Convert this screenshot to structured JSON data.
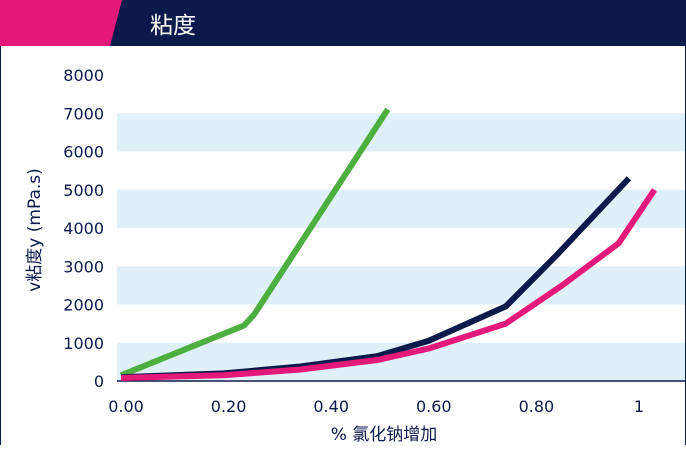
{
  "header": {
    "title": "粘度",
    "bar_color": "#0c1a4b",
    "accent_color": "#e5197a",
    "title_color": "#ffffff"
  },
  "chart_data": {
    "type": "line",
    "title": "粘度",
    "xlabel": "% 氯化钠增加",
    "ylabel": "v粘度y (mPa.s)",
    "xlim": [
      0,
      1.05
    ],
    "ylim": [
      0,
      8000
    ],
    "x_ticks": [
      0,
      0.2,
      0.4,
      0.6,
      0.8,
      1
    ],
    "x_tick_labels": [
      "0.00",
      "0.20",
      "0.40",
      "0.60",
      "0.80",
      "1"
    ],
    "y_ticks": [
      0,
      1000,
      2000,
      3000,
      4000,
      5000,
      6000,
      7000,
      8000
    ],
    "y_tick_labels": [
      "0",
      "1000",
      "2000",
      "3000",
      "4000",
      "5000",
      "6000",
      "7000",
      "8000"
    ],
    "grid": "horizontal alternating bands",
    "band_color": "#dff0f8",
    "series": [
      {
        "color": "#4caf3f",
        "points": [
          [
            0,
            150
          ],
          [
            0.24,
            1450
          ],
          [
            0.26,
            1750
          ],
          [
            0.52,
            7100
          ]
        ]
      },
      {
        "color": "#0c1a4b",
        "points": [
          [
            0,
            100
          ],
          [
            0.2,
            200
          ],
          [
            0.35,
            380
          ],
          [
            0.5,
            650
          ],
          [
            0.6,
            1050
          ],
          [
            0.75,
            1950
          ],
          [
            0.85,
            3300
          ],
          [
            0.99,
            5300
          ]
        ]
      },
      {
        "color": "#e5197a",
        "points": [
          [
            0,
            80
          ],
          [
            0.2,
            150
          ],
          [
            0.35,
            300
          ],
          [
            0.5,
            550
          ],
          [
            0.6,
            850
          ],
          [
            0.75,
            1500
          ],
          [
            0.86,
            2500
          ],
          [
            0.97,
            3600
          ],
          [
            1.04,
            5000
          ]
        ]
      }
    ]
  }
}
